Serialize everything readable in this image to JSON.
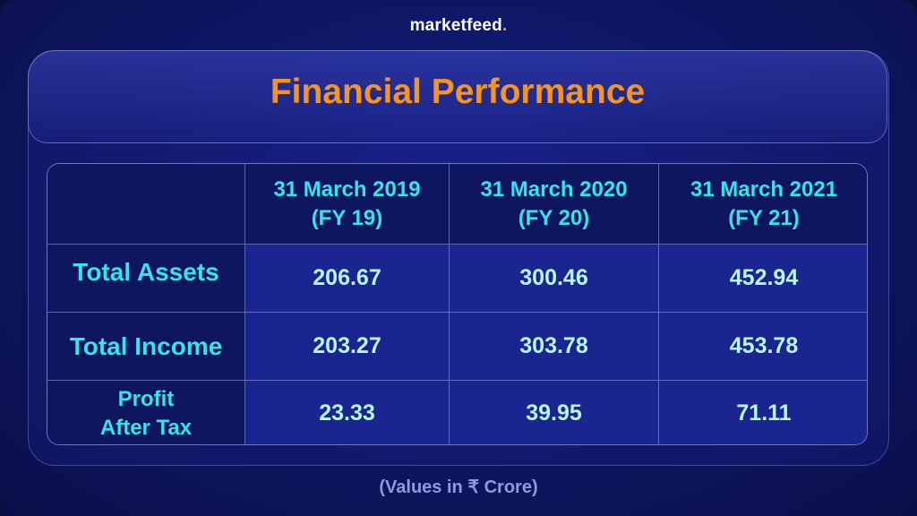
{
  "brand": {
    "name": "marketfeed",
    "dot": "."
  },
  "title": "Financial Performance",
  "table": {
    "headers": [
      {
        "line1": "31 March 2019",
        "line2": "(FY 19)"
      },
      {
        "line1": "31 March 2020",
        "line2": "(FY 20)"
      },
      {
        "line1": "31 March 2021",
        "line2": "(FY 21)"
      }
    ],
    "rows": [
      {
        "label1": "Total Assets",
        "label2": "",
        "values": [
          "206.67",
          "300.46",
          "452.94"
        ]
      },
      {
        "label1": "Total Income",
        "label2": "",
        "values": [
          "203.27",
          "303.78",
          "453.78"
        ]
      },
      {
        "label1": "Profit",
        "label2": "After Tax",
        "values": [
          "23.33",
          "39.95",
          "71.11"
        ]
      }
    ]
  },
  "note": "(Values in ₹ Crore)",
  "colors": {
    "accent": "#f7941d",
    "cyan": "#35e3e8",
    "background": "#0f1766"
  }
}
